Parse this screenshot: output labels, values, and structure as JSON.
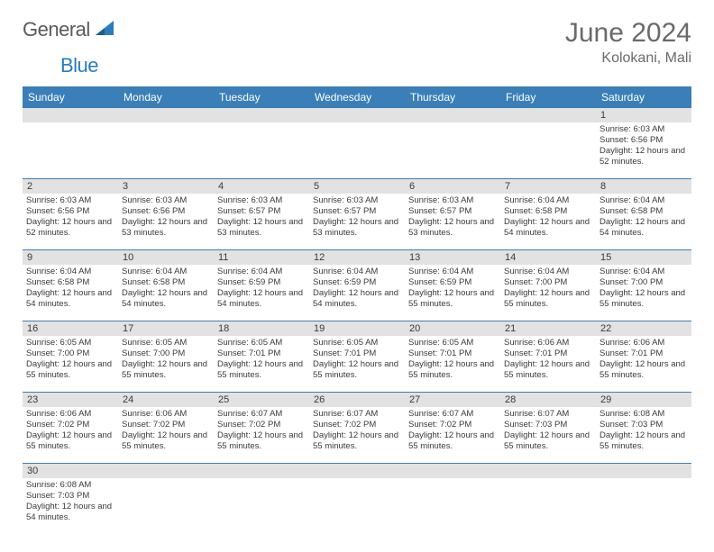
{
  "logo": {
    "text1": "General",
    "text2": "Blue"
  },
  "title": "June 2024",
  "location": "Kolokani, Mali",
  "colors": {
    "header_bg": "#3a7fb8",
    "daynum_bg": "#e2e2e2",
    "rule": "#3a7fb8",
    "text": "#3a3a3a",
    "title": "#6a6a6a"
  },
  "day_names": [
    "Sunday",
    "Monday",
    "Tuesday",
    "Wednesday",
    "Thursday",
    "Friday",
    "Saturday"
  ],
  "weeks": [
    [
      null,
      null,
      null,
      null,
      null,
      null,
      {
        "n": "1",
        "sr": "Sunrise: 6:03 AM",
        "ss": "Sunset: 6:56 PM",
        "dl": "Daylight: 12 hours and 52 minutes."
      }
    ],
    [
      {
        "n": "2",
        "sr": "Sunrise: 6:03 AM",
        "ss": "Sunset: 6:56 PM",
        "dl": "Daylight: 12 hours and 52 minutes."
      },
      {
        "n": "3",
        "sr": "Sunrise: 6:03 AM",
        "ss": "Sunset: 6:56 PM",
        "dl": "Daylight: 12 hours and 53 minutes."
      },
      {
        "n": "4",
        "sr": "Sunrise: 6:03 AM",
        "ss": "Sunset: 6:57 PM",
        "dl": "Daylight: 12 hours and 53 minutes."
      },
      {
        "n": "5",
        "sr": "Sunrise: 6:03 AM",
        "ss": "Sunset: 6:57 PM",
        "dl": "Daylight: 12 hours and 53 minutes."
      },
      {
        "n": "6",
        "sr": "Sunrise: 6:03 AM",
        "ss": "Sunset: 6:57 PM",
        "dl": "Daylight: 12 hours and 53 minutes."
      },
      {
        "n": "7",
        "sr": "Sunrise: 6:04 AM",
        "ss": "Sunset: 6:58 PM",
        "dl": "Daylight: 12 hours and 54 minutes."
      },
      {
        "n": "8",
        "sr": "Sunrise: 6:04 AM",
        "ss": "Sunset: 6:58 PM",
        "dl": "Daylight: 12 hours and 54 minutes."
      }
    ],
    [
      {
        "n": "9",
        "sr": "Sunrise: 6:04 AM",
        "ss": "Sunset: 6:58 PM",
        "dl": "Daylight: 12 hours and 54 minutes."
      },
      {
        "n": "10",
        "sr": "Sunrise: 6:04 AM",
        "ss": "Sunset: 6:58 PM",
        "dl": "Daylight: 12 hours and 54 minutes."
      },
      {
        "n": "11",
        "sr": "Sunrise: 6:04 AM",
        "ss": "Sunset: 6:59 PM",
        "dl": "Daylight: 12 hours and 54 minutes."
      },
      {
        "n": "12",
        "sr": "Sunrise: 6:04 AM",
        "ss": "Sunset: 6:59 PM",
        "dl": "Daylight: 12 hours and 54 minutes."
      },
      {
        "n": "13",
        "sr": "Sunrise: 6:04 AM",
        "ss": "Sunset: 6:59 PM",
        "dl": "Daylight: 12 hours and 55 minutes."
      },
      {
        "n": "14",
        "sr": "Sunrise: 6:04 AM",
        "ss": "Sunset: 7:00 PM",
        "dl": "Daylight: 12 hours and 55 minutes."
      },
      {
        "n": "15",
        "sr": "Sunrise: 6:04 AM",
        "ss": "Sunset: 7:00 PM",
        "dl": "Daylight: 12 hours and 55 minutes."
      }
    ],
    [
      {
        "n": "16",
        "sr": "Sunrise: 6:05 AM",
        "ss": "Sunset: 7:00 PM",
        "dl": "Daylight: 12 hours and 55 minutes."
      },
      {
        "n": "17",
        "sr": "Sunrise: 6:05 AM",
        "ss": "Sunset: 7:00 PM",
        "dl": "Daylight: 12 hours and 55 minutes."
      },
      {
        "n": "18",
        "sr": "Sunrise: 6:05 AM",
        "ss": "Sunset: 7:01 PM",
        "dl": "Daylight: 12 hours and 55 minutes."
      },
      {
        "n": "19",
        "sr": "Sunrise: 6:05 AM",
        "ss": "Sunset: 7:01 PM",
        "dl": "Daylight: 12 hours and 55 minutes."
      },
      {
        "n": "20",
        "sr": "Sunrise: 6:05 AM",
        "ss": "Sunset: 7:01 PM",
        "dl": "Daylight: 12 hours and 55 minutes."
      },
      {
        "n": "21",
        "sr": "Sunrise: 6:06 AM",
        "ss": "Sunset: 7:01 PM",
        "dl": "Daylight: 12 hours and 55 minutes."
      },
      {
        "n": "22",
        "sr": "Sunrise: 6:06 AM",
        "ss": "Sunset: 7:01 PM",
        "dl": "Daylight: 12 hours and 55 minutes."
      }
    ],
    [
      {
        "n": "23",
        "sr": "Sunrise: 6:06 AM",
        "ss": "Sunset: 7:02 PM",
        "dl": "Daylight: 12 hours and 55 minutes."
      },
      {
        "n": "24",
        "sr": "Sunrise: 6:06 AM",
        "ss": "Sunset: 7:02 PM",
        "dl": "Daylight: 12 hours and 55 minutes."
      },
      {
        "n": "25",
        "sr": "Sunrise: 6:07 AM",
        "ss": "Sunset: 7:02 PM",
        "dl": "Daylight: 12 hours and 55 minutes."
      },
      {
        "n": "26",
        "sr": "Sunrise: 6:07 AM",
        "ss": "Sunset: 7:02 PM",
        "dl": "Daylight: 12 hours and 55 minutes."
      },
      {
        "n": "27",
        "sr": "Sunrise: 6:07 AM",
        "ss": "Sunset: 7:02 PM",
        "dl": "Daylight: 12 hours and 55 minutes."
      },
      {
        "n": "28",
        "sr": "Sunrise: 6:07 AM",
        "ss": "Sunset: 7:03 PM",
        "dl": "Daylight: 12 hours and 55 minutes."
      },
      {
        "n": "29",
        "sr": "Sunrise: 6:08 AM",
        "ss": "Sunset: 7:03 PM",
        "dl": "Daylight: 12 hours and 55 minutes."
      }
    ],
    [
      {
        "n": "30",
        "sr": "Sunrise: 6:08 AM",
        "ss": "Sunset: 7:03 PM",
        "dl": "Daylight: 12 hours and 54 minutes."
      },
      null,
      null,
      null,
      null,
      null,
      null
    ]
  ]
}
